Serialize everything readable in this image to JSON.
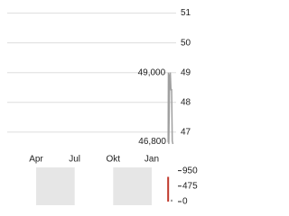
{
  "chart_data": [
    {
      "type": "line",
      "x": [
        11.28,
        11.3,
        11.33,
        11.4,
        11.45,
        11.5,
        11.55,
        11.6,
        11.65
      ],
      "series": [
        {
          "color": "#a0a0a0",
          "values": [
            46.65,
            49.0,
            46.6,
            48.9,
            49.0,
            48.4,
            48.45,
            46.7,
            46.6
          ]
        }
      ],
      "xlim": [
        -1.25,
        11.9
      ],
      "xticks": [
        {
          "value": 1,
          "label": "Apr"
        },
        {
          "value": 4,
          "label": "Jul"
        },
        {
          "value": 7,
          "label": "Okt"
        },
        {
          "value": 10,
          "label": "Jan"
        }
      ],
      "ylim": [
        46.6,
        51.2
      ],
      "yticks": [
        47,
        48,
        49,
        50,
        51
      ],
      "annotations": [
        {
          "x": 11.28,
          "value": 49,
          "label": "49,000"
        },
        {
          "x": 11.33,
          "value": 46.8,
          "label": "46,800"
        }
      ],
      "grid": true
    },
    {
      "type": "bar",
      "x": [
        11.28,
        11.55
      ],
      "values": [
        760,
        60
      ],
      "colors": [
        "#c0392b",
        "#a0a0a0"
      ],
      "xlim": [
        -1.25,
        11.9
      ],
      "ylim": [
        0,
        1050
      ],
      "yticks": [
        0,
        475,
        950
      ],
      "shaded": [
        [
          1,
          4
        ],
        [
          7,
          10
        ]
      ]
    }
  ]
}
